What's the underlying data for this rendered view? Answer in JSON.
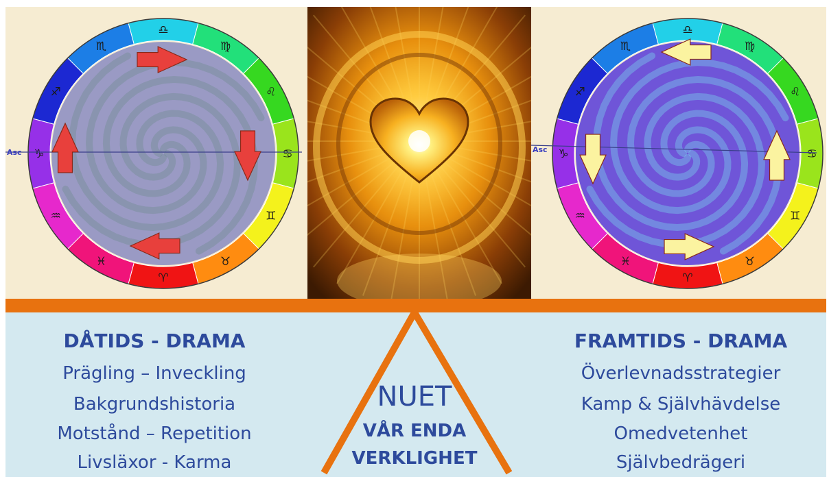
{
  "left_chart": {
    "asc_label": "Asc",
    "signs": [
      "♎",
      "♍",
      "♌",
      "♋",
      "♊",
      "♉",
      "♈",
      "♓",
      "♒",
      "♑",
      "♐",
      "♏"
    ],
    "sign_colors": [
      "#22d0e8",
      "#22e07a",
      "#36d820",
      "#9ae41c",
      "#f4f21c",
      "#ff8c10",
      "#f01414",
      "#f0147a",
      "#e628cc",
      "#9630e8",
      "#1c28d2",
      "#1c7ee6"
    ],
    "arrow_color": "#e8403c",
    "disc_color": "#9a9ac4"
  },
  "right_chart": {
    "asc_label": "Asc",
    "signs": [
      "♎",
      "♍",
      "♌",
      "♋",
      "♊",
      "♉",
      "♈",
      "♓",
      "♒",
      "♑",
      "♐",
      "♏"
    ],
    "arrow_color": "#fbf3a0",
    "disc_color": "#6f55d8"
  },
  "heart_image": {
    "colors": [
      "#ffe070",
      "#f5a818",
      "#b85a08",
      "#5a2a04"
    ]
  },
  "left_text": {
    "title": "DÅTIDS - DRAMA",
    "lines": [
      "Prägling – Inveckling",
      "Bakgrundshistoria",
      "Motstånd – Repetition",
      "Livsläxor - Karma"
    ]
  },
  "center_text": {
    "big": "NUET",
    "line1": "VÅR ENDA",
    "line2": "VERKLIGHET"
  },
  "right_text": {
    "title": "FRAMTIDS - DRAMA",
    "lines": [
      "Överlevnadsstrategier",
      "Kamp & Självhävdelse",
      "Omedvetenhet",
      "Självbedrägeri"
    ]
  }
}
